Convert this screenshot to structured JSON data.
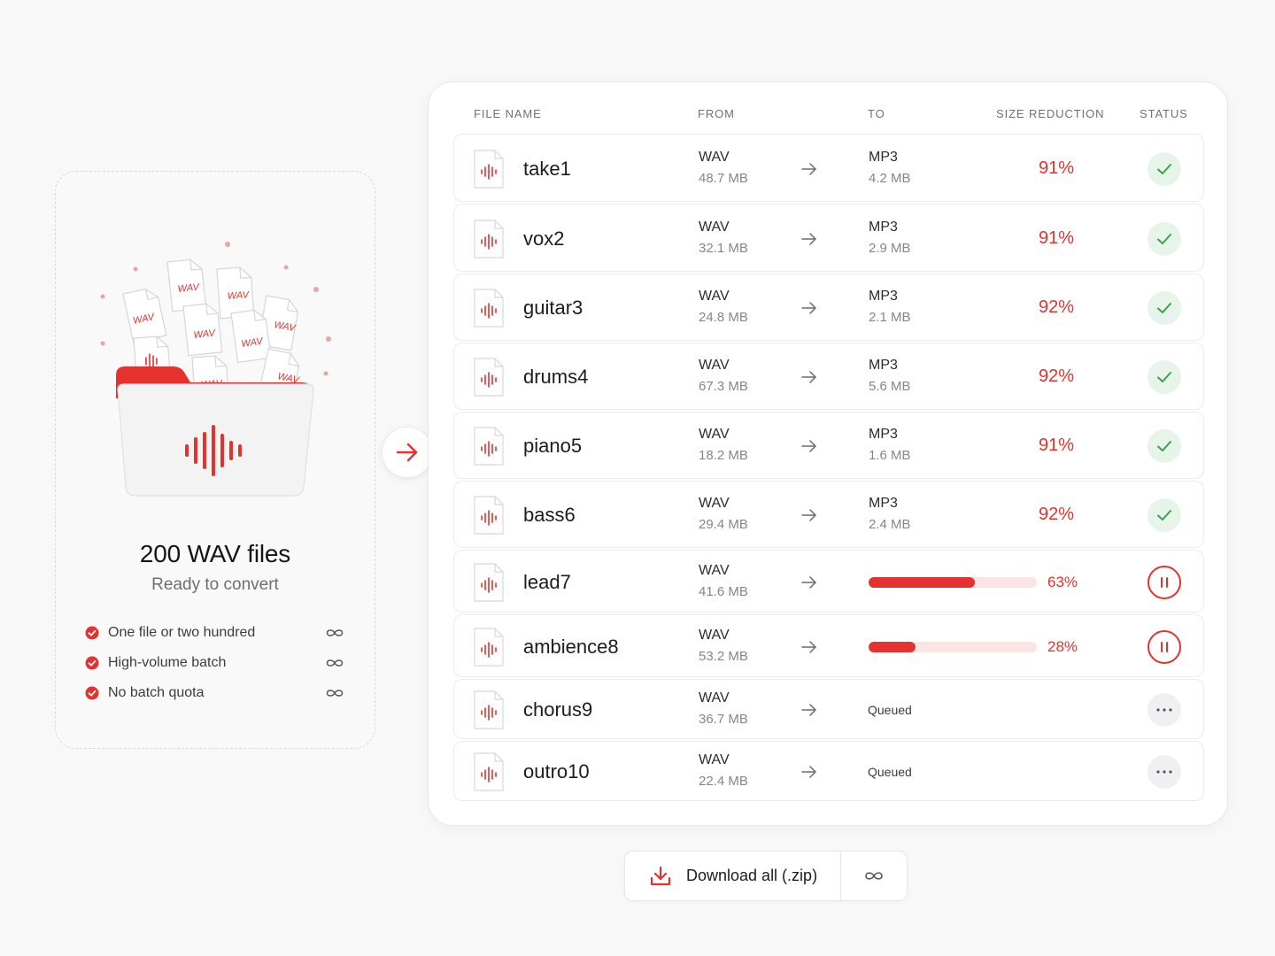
{
  "colors": {
    "accent": "#e5322e",
    "success": "#3aa14a",
    "success_bg": "#e6f4e9",
    "text_muted": "#85858b"
  },
  "upload_panel": {
    "title": "200 WAV files",
    "subtitle": "Ready to convert",
    "file_badge": "WAV",
    "features": [
      {
        "label": "One file or two hundred",
        "icon": "infinity-icon"
      },
      {
        "label": "High-volume batch",
        "icon": "infinity-icon"
      },
      {
        "label": "No batch quota",
        "icon": "infinity-icon"
      }
    ]
  },
  "table": {
    "headers": {
      "file_name": "FILE NAME",
      "from": "FROM",
      "to": "TO",
      "size_reduction": "SIZE REDUCTION",
      "status": "STATUS"
    },
    "rows": [
      {
        "name": "take1",
        "from_format": "WAV",
        "from_size": "48.7 MB",
        "to_format": "MP3",
        "to_size": "4.2 MB",
        "reduction": "91%",
        "status": "done"
      },
      {
        "name": "vox2",
        "from_format": "WAV",
        "from_size": "32.1 MB",
        "to_format": "MP3",
        "to_size": "2.9 MB",
        "reduction": "91%",
        "status": "done"
      },
      {
        "name": "guitar3",
        "from_format": "WAV",
        "from_size": "24.8 MB",
        "to_format": "MP3",
        "to_size": "2.1 MB",
        "reduction": "92%",
        "status": "done"
      },
      {
        "name": "drums4",
        "from_format": "WAV",
        "from_size": "67.3 MB",
        "to_format": "MP3",
        "to_size": "5.6 MB",
        "reduction": "92%",
        "status": "done"
      },
      {
        "name": "piano5",
        "from_format": "WAV",
        "from_size": "18.2 MB",
        "to_format": "MP3",
        "to_size": "1.6 MB",
        "reduction": "91%",
        "status": "done"
      },
      {
        "name": "bass6",
        "from_format": "WAV",
        "from_size": "29.4 MB",
        "to_format": "MP3",
        "to_size": "2.4 MB",
        "reduction": "92%",
        "status": "done"
      },
      {
        "name": "lead7",
        "from_format": "WAV",
        "from_size": "41.6 MB",
        "progress": 0.63,
        "progress_label": "63%",
        "status": "paused"
      },
      {
        "name": "ambience8",
        "from_format": "WAV",
        "from_size": "53.2 MB",
        "progress": 0.28,
        "progress_label": "28%",
        "status": "paused"
      },
      {
        "name": "chorus9",
        "from_format": "WAV",
        "from_size": "36.7 MB",
        "queued_label": "Queued",
        "status": "queued"
      },
      {
        "name": "outro10",
        "from_format": "WAV",
        "from_size": "22.4 MB",
        "queued_label": "Queued",
        "status": "queued"
      }
    ]
  },
  "download": {
    "label": "Download all (.zip)",
    "icon": "download-icon",
    "extra_icon": "infinity-icon"
  }
}
